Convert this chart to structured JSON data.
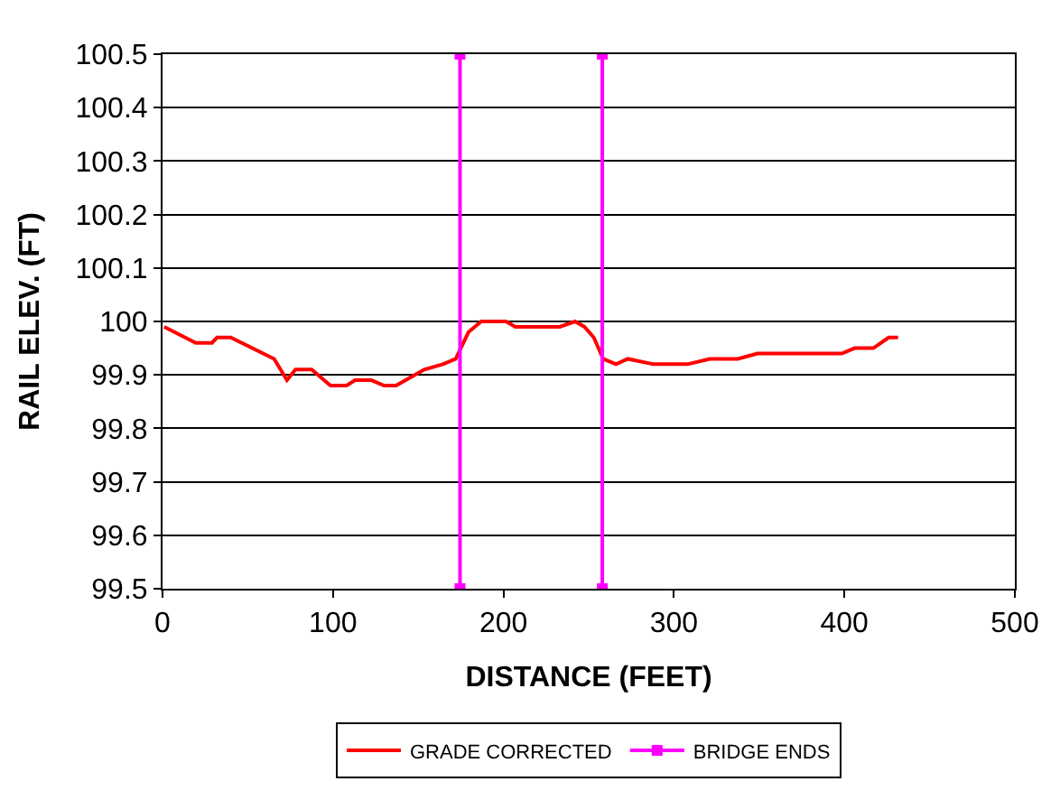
{
  "chart_data": {
    "type": "line",
    "xlabel": "DISTANCE (FEET)",
    "ylabel": "RAIL ELEV. (FT)",
    "xlim": [
      0,
      500
    ],
    "xticks": [
      0,
      100,
      200,
      300,
      400,
      500
    ],
    "ylim": [
      99.5,
      100.5
    ],
    "yticks": [
      {
        "value": 99.5,
        "label": "99.5"
      },
      {
        "value": 99.6,
        "label": "99.6"
      },
      {
        "value": 99.7,
        "label": "99.7"
      },
      {
        "value": 99.8,
        "label": "99.8"
      },
      {
        "value": 99.9,
        "label": "99.9"
      },
      {
        "value": 100,
        "label": "100"
      },
      {
        "value": 100.1,
        "label": "100.1"
      },
      {
        "value": 100.2,
        "label": "100.2"
      },
      {
        "value": 100.3,
        "label": "100.3"
      },
      {
        "value": 100.4,
        "label": "100.4"
      },
      {
        "value": 100.5,
        "label": "100.5"
      }
    ],
    "grid": "y",
    "legend": "bottom",
    "series": [
      {
        "name": "GRADE CORRECTED",
        "color": "#ff0000",
        "marker": "none",
        "x": [
          1,
          19.5,
          29,
          32,
          40,
          65.5,
          73,
          78,
          87.5,
          98.5,
          108,
          113,
          122.5,
          130,
          137,
          148,
          153.5,
          164.5,
          172,
          179.5,
          187,
          201.5,
          207,
          212.5,
          221.5,
          227,
          233,
          242,
          247.5,
          253,
          258.5,
          266,
          273,
          288,
          308,
          321,
          332,
          337.5,
          349,
          361.5,
          371,
          376,
          398.5,
          406,
          417,
          426,
          431.5
        ],
        "values": [
          99.99,
          99.96,
          99.96,
          99.97,
          99.97,
          99.93,
          99.89,
          99.91,
          99.91,
          99.88,
          99.88,
          99.89,
          99.89,
          99.88,
          99.88,
          99.9,
          99.91,
          99.92,
          99.93,
          99.98,
          100,
          100,
          99.99,
          99.99,
          99.99,
          99.99,
          99.99,
          100,
          99.99,
          99.97,
          99.93,
          99.92,
          99.93,
          99.92,
          99.92,
          99.93,
          99.93,
          99.93,
          99.94,
          99.94,
          99.94,
          99.94,
          99.94,
          99.95,
          99.95,
          99.97,
          99.97
        ]
      },
      {
        "name": "BRIDGE ENDS",
        "color": "#ff00ff",
        "marker": "square",
        "x": [
          174.5,
          174.5,
          null,
          258,
          258
        ],
        "values": [
          99.5,
          100.5,
          null,
          99.5,
          100.5
        ]
      }
    ]
  }
}
